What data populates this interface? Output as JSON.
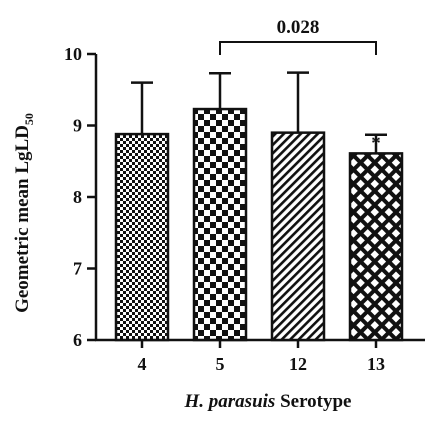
{
  "colors": {
    "ink": "#111111",
    "background": "#ffffff"
  },
  "chart_data": {
    "type": "bar",
    "categories": [
      "4",
      "5",
      "12",
      "13"
    ],
    "values": [
      8.88,
      9.23,
      8.9,
      8.61
    ],
    "error_upper": [
      9.6,
      9.73,
      9.74,
      8.87
    ],
    "bar_patterns": [
      "fine-checker",
      "coarse-checker",
      "diagonal-hatch",
      "diamond-lattice"
    ],
    "ylim": [
      6,
      10
    ],
    "yticks": [
      "6",
      "7",
      "8",
      "9",
      "10"
    ],
    "xlabel_italic": "H. parasuis",
    "xlabel_rest": " Serotype",
    "ylabel": "Geometric mean LgLD",
    "ylabel_subscript": "50",
    "grid": false,
    "bracket": {
      "from": "5",
      "to": "13",
      "label": "0.028"
    },
    "significance": {
      "category": "13",
      "mark": "*"
    }
  }
}
